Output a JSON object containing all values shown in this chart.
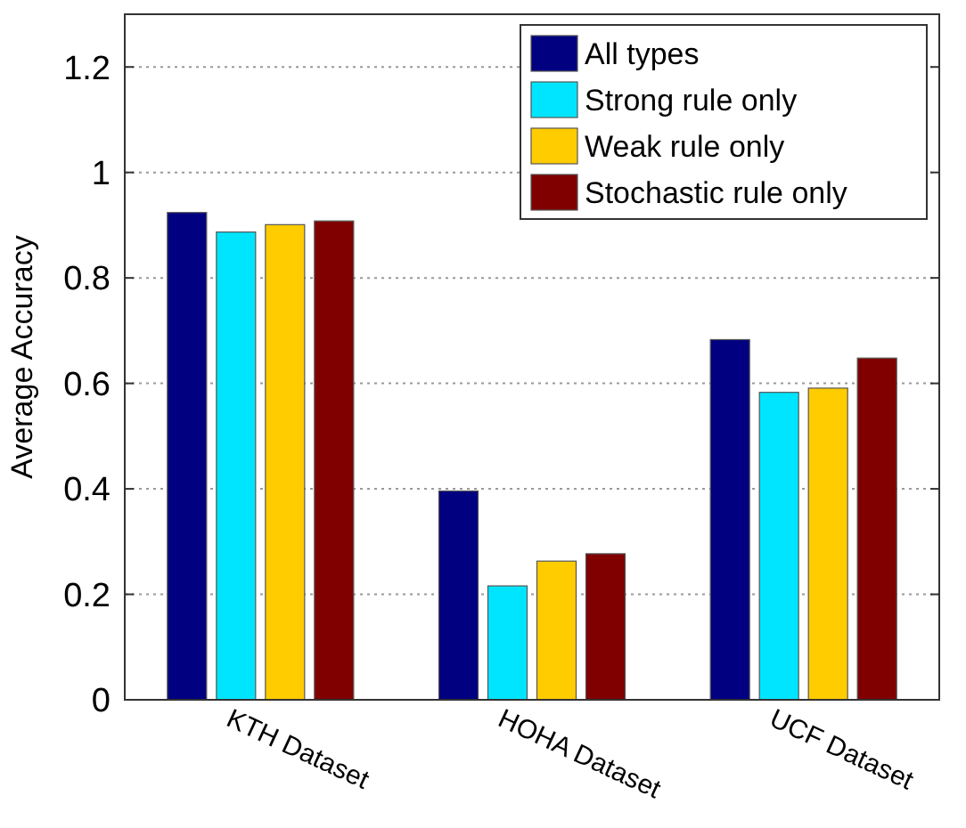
{
  "chart_data": {
    "type": "bar",
    "ylabel": "Average Accuracy",
    "categories": [
      "KTH Dataset",
      "HOHA Dataset",
      "UCF Dataset"
    ],
    "series": [
      {
        "name": "All types",
        "color": "#000080",
        "values": [
          0.924,
          0.396,
          0.683
        ]
      },
      {
        "name": "Strong rule only",
        "color": "#00e5ff",
        "values": [
          0.887,
          0.216,
          0.583
        ]
      },
      {
        "name": "Weak rule only",
        "color": "#ffcc00",
        "values": [
          0.901,
          0.263,
          0.591
        ]
      },
      {
        "name": "Stochastic rule only",
        "color": "#800000",
        "values": [
          0.908,
          0.277,
          0.648
        ]
      }
    ],
    "ylim": [
      0,
      1.3
    ],
    "yticks": [
      0,
      0.2,
      0.4,
      0.6,
      0.8,
      1,
      1.2
    ],
    "grid": "y",
    "legend": "top right"
  }
}
